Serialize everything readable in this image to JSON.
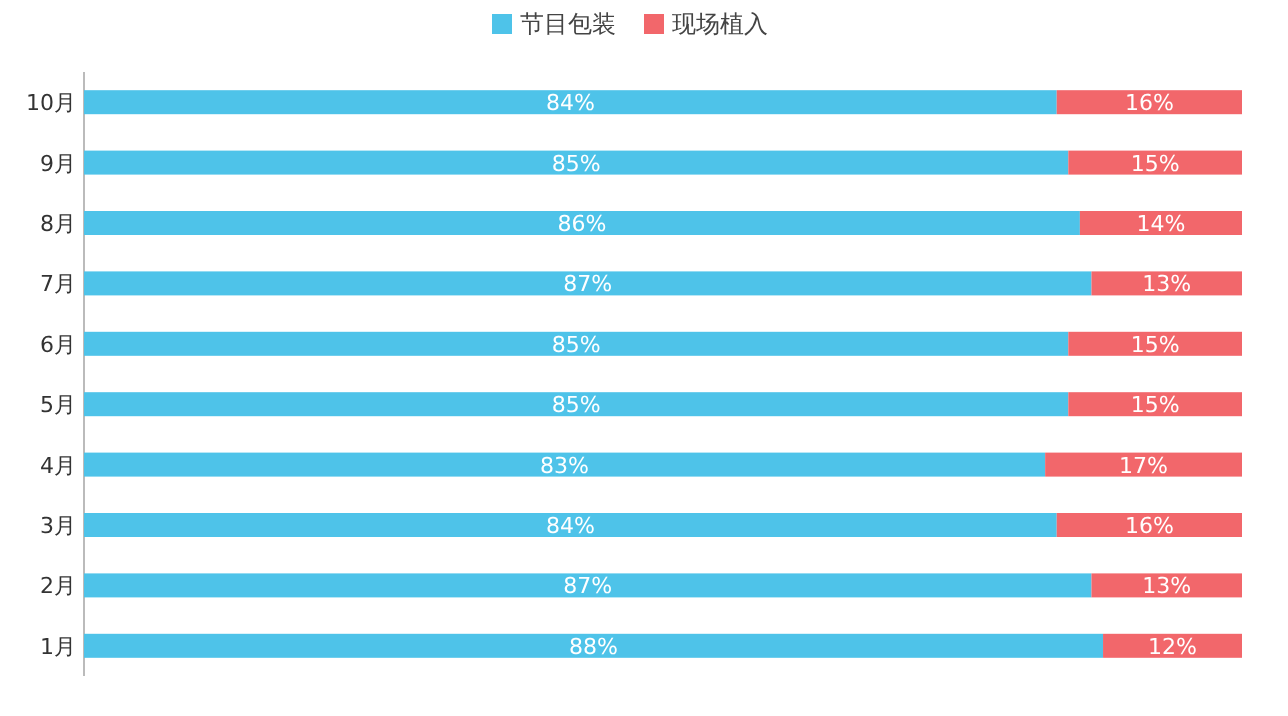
{
  "chart_data": {
    "type": "bar",
    "orientation": "horizontal",
    "stacked": true,
    "legend": "top",
    "categories": [
      "10月",
      "9月",
      "8月",
      "7月",
      "6月",
      "5月",
      "4月",
      "3月",
      "2月",
      "1月"
    ],
    "series": [
      {
        "name": "节目包装",
        "color": "#4ec3e9",
        "values": [
          84,
          85,
          86,
          87,
          85,
          85,
          83,
          84,
          87,
          88
        ],
        "value_labels": [
          "84%",
          "85%",
          "86%",
          "87%",
          "85%",
          "85%",
          "83%",
          "84%",
          "87%",
          "88%"
        ]
      },
      {
        "name": "现场植入",
        "color": "#f2676b",
        "values": [
          16,
          15,
          14,
          13,
          15,
          15,
          17,
          16,
          13,
          12
        ],
        "value_labels": [
          "16%",
          "15%",
          "14%",
          "13%",
          "15%",
          "15%",
          "17%",
          "16%",
          "13%",
          "12%"
        ]
      }
    ]
  }
}
